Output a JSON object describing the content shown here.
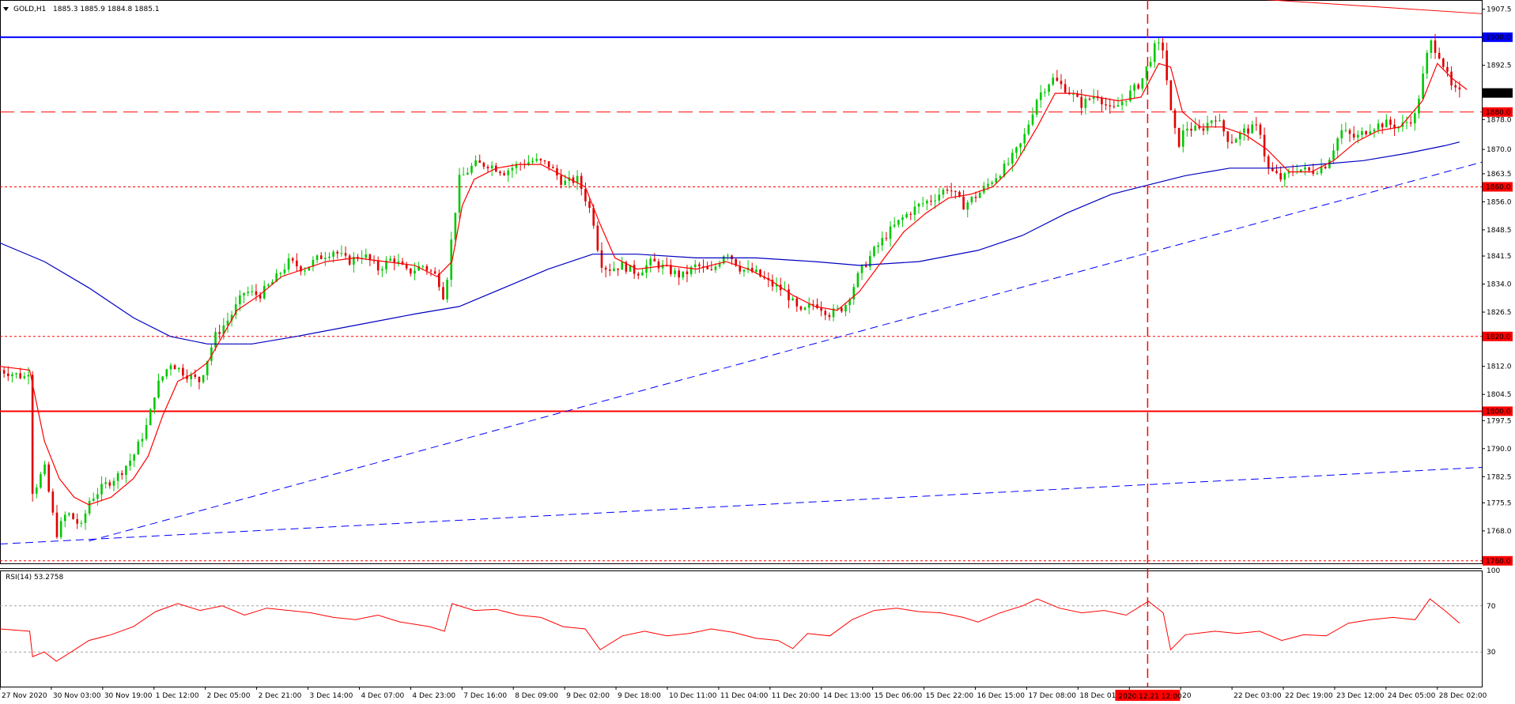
{
  "header": {
    "symbol": "GOLD,H1",
    "ohlc": "1885.3 1885.9 1884.8 1885.1",
    "collapse_icon": "triangle-down-icon"
  },
  "rsi": {
    "label": "RSI(14) 53.2758",
    "levels": [
      70,
      30
    ],
    "scale_max": "100"
  },
  "crosshair_time": "2020.12.21 12:00",
  "current_price": "1885.1",
  "colors": {
    "bull": "#00c800",
    "bear": "#e00000",
    "ma_fast": "#ff0000",
    "ma_slow": "#0000c0",
    "trend": "#0000ff",
    "level": "#ff0000",
    "label_blue": "#0000ff",
    "label_red": "#ff0000",
    "price_box": "#000000"
  },
  "chart_data": {
    "type": "candlestick",
    "title": "GOLD,H1",
    "ylim": [
      1760,
      1910
    ],
    "yticks": [
      "1907.5",
      "1892.5",
      "1878.0",
      "1870.0",
      "1863.5",
      "1856.0",
      "1848.5",
      "1841.5",
      "1834.0",
      "1826.5",
      "1812.0",
      "1804.5",
      "1797.5",
      "1790.0",
      "1782.5",
      "1775.5",
      "1768.0"
    ],
    "xticks": [
      "27 Nov 2020",
      "30 Nov 03:00",
      "30 Nov 19:00",
      "1 Dec 12:00",
      "2 Dec 05:00",
      "2 Dec 21:00",
      "3 Dec 14:00",
      "4 Dec 07:00",
      "4 Dec 23:00",
      "7 Dec 16:00",
      "8 Dec 09:00",
      "9 Dec 02:00",
      "9 Dec 18:00",
      "10 Dec 11:00",
      "11 Dec 04:00",
      "11 Dec 20:00",
      "14 Dec 13:00",
      "15 Dec 06:00",
      "15 Dec 22:00",
      "16 Dec 15:00",
      "17 Dec 08:00",
      "18 Dec 01:00",
      "18 Dec",
      "20",
      "22 Dec 03:00",
      "22 Dec 19:00",
      "23 Dec 12:00",
      "24 Dec 05:00",
      "28 Dec 02:00"
    ],
    "horizontal_levels": [
      {
        "value": 1900.0,
        "label": "1900.0",
        "style": "solid",
        "color": "#0000ff"
      },
      {
        "value": 1880.0,
        "label": "1880.0",
        "style": "dashed",
        "color": "#ff0000"
      },
      {
        "value": 1860.0,
        "label": "1860.0",
        "style": "dotted",
        "color": "#ff0000"
      },
      {
        "value": 1820.0,
        "label": "1820.0",
        "style": "dotted",
        "color": "#ff0000"
      },
      {
        "value": 1800.0,
        "label": "1800.0",
        "style": "solid",
        "color": "#ff0000"
      },
      {
        "value": 1760.0,
        "label": "1760.0",
        "style": "dotted",
        "color": "#ff0000"
      }
    ],
    "trendlines": [
      {
        "style": "dashed",
        "color": "#0000ff",
        "points": [
          [
            0.06,
            1765.3
          ],
          [
            1.0,
            1866.6
          ]
        ]
      },
      {
        "style": "dashed",
        "color": "#0000ff",
        "points": [
          [
            0.0,
            1764.5
          ],
          [
            1.0,
            1785.0
          ]
        ]
      },
      {
        "style": "solid",
        "color": "#ff0000",
        "points": [
          [
            0.837,
            1910.5
          ],
          [
            1.0,
            1906.3
          ]
        ]
      }
    ],
    "close_path": [
      [
        0.0,
        1811
      ],
      [
        0.018,
        1809
      ],
      [
        0.02,
        1812
      ],
      [
        0.022,
        1778
      ],
      [
        0.03,
        1785
      ],
      [
        0.038,
        1767
      ],
      [
        0.045,
        1773
      ],
      [
        0.055,
        1769
      ],
      [
        0.06,
        1776
      ],
      [
        0.07,
        1780
      ],
      [
        0.08,
        1783
      ],
      [
        0.09,
        1788
      ],
      [
        0.1,
        1797
      ],
      [
        0.105,
        1806
      ],
      [
        0.115,
        1813
      ],
      [
        0.125,
        1810
      ],
      [
        0.135,
        1808
      ],
      [
        0.145,
        1820
      ],
      [
        0.155,
        1825
      ],
      [
        0.165,
        1832
      ],
      [
        0.175,
        1831
      ],
      [
        0.185,
        1835
      ],
      [
        0.195,
        1840
      ],
      [
        0.205,
        1838
      ],
      [
        0.215,
        1841
      ],
      [
        0.225,
        1843
      ],
      [
        0.235,
        1840
      ],
      [
        0.245,
        1842
      ],
      [
        0.255,
        1838
      ],
      [
        0.265,
        1841
      ],
      [
        0.275,
        1837
      ],
      [
        0.285,
        1839
      ],
      [
        0.295,
        1836
      ],
      [
        0.3,
        1830
      ],
      [
        0.305,
        1847
      ],
      [
        0.31,
        1862
      ],
      [
        0.32,
        1866
      ],
      [
        0.33,
        1866
      ],
      [
        0.34,
        1864
      ],
      [
        0.35,
        1866
      ],
      [
        0.36,
        1867
      ],
      [
        0.37,
        1866
      ],
      [
        0.38,
        1861
      ],
      [
        0.39,
        1862
      ],
      [
        0.4,
        1852
      ],
      [
        0.405,
        1840
      ],
      [
        0.41,
        1838
      ],
      [
        0.42,
        1839
      ],
      [
        0.43,
        1837
      ],
      [
        0.44,
        1840
      ],
      [
        0.45,
        1838
      ],
      [
        0.46,
        1836
      ],
      [
        0.47,
        1839
      ],
      [
        0.48,
        1837
      ],
      [
        0.49,
        1843
      ],
      [
        0.5,
        1838
      ],
      [
        0.51,
        1837
      ],
      [
        0.52,
        1834
      ],
      [
        0.53,
        1832
      ],
      [
        0.54,
        1826
      ],
      [
        0.55,
        1829
      ],
      [
        0.56,
        1826
      ],
      [
        0.57,
        1828
      ],
      [
        0.58,
        1837
      ],
      [
        0.59,
        1843
      ],
      [
        0.6,
        1848
      ],
      [
        0.61,
        1852
      ],
      [
        0.62,
        1855
      ],
      [
        0.63,
        1857
      ],
      [
        0.64,
        1860
      ],
      [
        0.65,
        1855
      ],
      [
        0.66,
        1858
      ],
      [
        0.67,
        1862
      ],
      [
        0.68,
        1866
      ],
      [
        0.69,
        1872
      ],
      [
        0.7,
        1884
      ],
      [
        0.71,
        1889
      ],
      [
        0.72,
        1886
      ],
      [
        0.73,
        1882
      ],
      [
        0.74,
        1885
      ],
      [
        0.75,
        1880
      ],
      [
        0.76,
        1884
      ],
      [
        0.77,
        1888
      ],
      [
        0.78,
        1898
      ],
      [
        0.785,
        1897
      ],
      [
        0.79,
        1880
      ],
      [
        0.795,
        1871
      ],
      [
        0.8,
        1876
      ],
      [
        0.81,
        1875
      ],
      [
        0.82,
        1879
      ],
      [
        0.83,
        1872
      ],
      [
        0.84,
        1875
      ],
      [
        0.85,
        1876
      ],
      [
        0.855,
        1865
      ],
      [
        0.865,
        1862
      ],
      [
        0.875,
        1865
      ],
      [
        0.885,
        1864
      ],
      [
        0.895,
        1866
      ],
      [
        0.905,
        1875
      ],
      [
        0.915,
        1873
      ],
      [
        0.925,
        1876
      ],
      [
        0.935,
        1877
      ],
      [
        0.945,
        1876
      ],
      [
        0.955,
        1879
      ],
      [
        0.965,
        1899
      ],
      [
        0.972,
        1895
      ],
      [
        0.98,
        1886
      ],
      [
        0.985,
        1885
      ]
    ],
    "ma_fast_path": [
      [
        0.0,
        1812
      ],
      [
        0.02,
        1811
      ],
      [
        0.03,
        1792
      ],
      [
        0.04,
        1782
      ],
      [
        0.05,
        1777
      ],
      [
        0.06,
        1775
      ],
      [
        0.075,
        1777
      ],
      [
        0.09,
        1782
      ],
      [
        0.1,
        1788
      ],
      [
        0.11,
        1799
      ],
      [
        0.12,
        1808
      ],
      [
        0.13,
        1810
      ],
      [
        0.14,
        1813
      ],
      [
        0.15,
        1820
      ],
      [
        0.16,
        1827
      ],
      [
        0.175,
        1831
      ],
      [
        0.19,
        1836
      ],
      [
        0.205,
        1838
      ],
      [
        0.22,
        1840
      ],
      [
        0.24,
        1841
      ],
      [
        0.26,
        1840
      ],
      [
        0.28,
        1839
      ],
      [
        0.295,
        1836
      ],
      [
        0.305,
        1840
      ],
      [
        0.312,
        1855
      ],
      [
        0.32,
        1862
      ],
      [
        0.335,
        1865
      ],
      [
        0.35,
        1866
      ],
      [
        0.365,
        1866
      ],
      [
        0.38,
        1863
      ],
      [
        0.395,
        1860
      ],
      [
        0.405,
        1850
      ],
      [
        0.415,
        1841
      ],
      [
        0.43,
        1838
      ],
      [
        0.45,
        1839
      ],
      [
        0.47,
        1838
      ],
      [
        0.49,
        1840
      ],
      [
        0.505,
        1838
      ],
      [
        0.52,
        1835
      ],
      [
        0.535,
        1831
      ],
      [
        0.55,
        1828
      ],
      [
        0.565,
        1827
      ],
      [
        0.58,
        1832
      ],
      [
        0.595,
        1840
      ],
      [
        0.61,
        1848
      ],
      [
        0.625,
        1853
      ],
      [
        0.64,
        1857
      ],
      [
        0.655,
        1858
      ],
      [
        0.67,
        1860
      ],
      [
        0.685,
        1866
      ],
      [
        0.7,
        1876
      ],
      [
        0.712,
        1885
      ],
      [
        0.725,
        1885
      ],
      [
        0.74,
        1884
      ],
      [
        0.755,
        1883
      ],
      [
        0.77,
        1884
      ],
      [
        0.782,
        1893
      ],
      [
        0.79,
        1892
      ],
      [
        0.798,
        1880
      ],
      [
        0.81,
        1876
      ],
      [
        0.825,
        1876
      ],
      [
        0.84,
        1874
      ],
      [
        0.855,
        1870
      ],
      [
        0.87,
        1864
      ],
      [
        0.885,
        1864
      ],
      [
        0.9,
        1867
      ],
      [
        0.915,
        1872
      ],
      [
        0.93,
        1875
      ],
      [
        0.945,
        1876
      ],
      [
        0.96,
        1883
      ],
      [
        0.97,
        1893
      ],
      [
        0.98,
        1889
      ],
      [
        0.99,
        1886
      ]
    ],
    "ma_slow_path": [
      [
        0.0,
        1845
      ],
      [
        0.03,
        1840
      ],
      [
        0.06,
        1833
      ],
      [
        0.09,
        1825
      ],
      [
        0.115,
        1820
      ],
      [
        0.14,
        1818
      ],
      [
        0.17,
        1818
      ],
      [
        0.2,
        1820
      ],
      [
        0.24,
        1823
      ],
      [
        0.28,
        1826
      ],
      [
        0.31,
        1828
      ],
      [
        0.34,
        1833
      ],
      [
        0.37,
        1838
      ],
      [
        0.4,
        1842
      ],
      [
        0.43,
        1842
      ],
      [
        0.47,
        1841
      ],
      [
        0.51,
        1841
      ],
      [
        0.55,
        1840
      ],
      [
        0.58,
        1839
      ],
      [
        0.62,
        1840
      ],
      [
        0.66,
        1843
      ],
      [
        0.69,
        1847
      ],
      [
        0.72,
        1853
      ],
      [
        0.75,
        1858
      ],
      [
        0.78,
        1861
      ],
      [
        0.8,
        1863
      ],
      [
        0.83,
        1865
      ],
      [
        0.86,
        1865
      ],
      [
        0.89,
        1866
      ],
      [
        0.92,
        1867
      ],
      [
        0.95,
        1869
      ],
      [
        0.975,
        1871
      ],
      [
        0.985,
        1872
      ]
    ],
    "rsi_path": [
      [
        0.0,
        50
      ],
      [
        0.02,
        48
      ],
      [
        0.022,
        26
      ],
      [
        0.03,
        30
      ],
      [
        0.038,
        22
      ],
      [
        0.048,
        30
      ],
      [
        0.06,
        40
      ],
      [
        0.075,
        45
      ],
      [
        0.09,
        52
      ],
      [
        0.105,
        65
      ],
      [
        0.12,
        72
      ],
      [
        0.135,
        66
      ],
      [
        0.15,
        70
      ],
      [
        0.165,
        62
      ],
      [
        0.18,
        68
      ],
      [
        0.195,
        66
      ],
      [
        0.21,
        64
      ],
      [
        0.225,
        60
      ],
      [
        0.24,
        58
      ],
      [
        0.255,
        62
      ],
      [
        0.27,
        56
      ],
      [
        0.29,
        52
      ],
      [
        0.3,
        48
      ],
      [
        0.305,
        72
      ],
      [
        0.32,
        66
      ],
      [
        0.335,
        67
      ],
      [
        0.35,
        62
      ],
      [
        0.365,
        60
      ],
      [
        0.38,
        52
      ],
      [
        0.395,
        50
      ],
      [
        0.405,
        32
      ],
      [
        0.42,
        44
      ],
      [
        0.435,
        48
      ],
      [
        0.45,
        44
      ],
      [
        0.465,
        46
      ],
      [
        0.48,
        50
      ],
      [
        0.495,
        47
      ],
      [
        0.51,
        42
      ],
      [
        0.525,
        40
      ],
      [
        0.535,
        33
      ],
      [
        0.545,
        46
      ],
      [
        0.56,
        44
      ],
      [
        0.575,
        58
      ],
      [
        0.59,
        66
      ],
      [
        0.605,
        68
      ],
      [
        0.62,
        65
      ],
      [
        0.635,
        64
      ],
      [
        0.65,
        60
      ],
      [
        0.66,
        56
      ],
      [
        0.675,
        64
      ],
      [
        0.69,
        70
      ],
      [
        0.7,
        76
      ],
      [
        0.715,
        68
      ],
      [
        0.73,
        64
      ],
      [
        0.745,
        66
      ],
      [
        0.76,
        62
      ],
      [
        0.775,
        74
      ],
      [
        0.785,
        64
      ],
      [
        0.79,
        32
      ],
      [
        0.8,
        45
      ],
      [
        0.82,
        48
      ],
      [
        0.835,
        46
      ],
      [
        0.85,
        48
      ],
      [
        0.865,
        40
      ],
      [
        0.88,
        45
      ],
      [
        0.895,
        44
      ],
      [
        0.91,
        55
      ],
      [
        0.925,
        58
      ],
      [
        0.94,
        60
      ],
      [
        0.955,
        58
      ],
      [
        0.965,
        76
      ],
      [
        0.975,
        66
      ],
      [
        0.985,
        55
      ]
    ]
  }
}
